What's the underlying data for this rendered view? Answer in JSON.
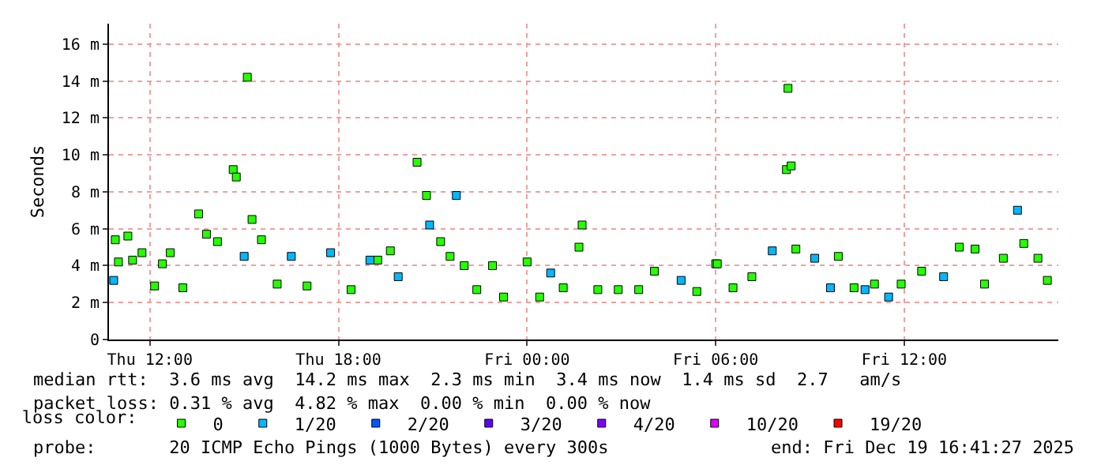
{
  "chart_data": {
    "type": "scatter",
    "ylabel": "Seconds",
    "marker": "square",
    "grid": true,
    "legend": "bottom",
    "legend_title": "loss color:",
    "xlim": [
      "2025-12-18T10:42",
      "2025-12-19T16:54"
    ],
    "xticks": [
      {
        "value": "2025-12-18T12:00",
        "label": "Thu 12:00"
      },
      {
        "value": "2025-12-18T18:00",
        "label": "Thu 18:00"
      },
      {
        "value": "2025-12-19T00:00",
        "label": "Fri 00:00"
      },
      {
        "value": "2025-12-19T06:00",
        "label": "Fri 06:00"
      },
      {
        "value": "2025-12-19T12:00",
        "label": "Fri 12:00"
      }
    ],
    "ylim": [
      0,
      17.1
    ],
    "yticks": [
      0,
      {
        "value": 2,
        "label": "2 m"
      },
      {
        "value": 4,
        "label": "4 m"
      },
      {
        "value": 6,
        "label": "6 m"
      },
      {
        "value": 8,
        "label": "8 m"
      },
      {
        "value": 10,
        "label": "10 m"
      },
      {
        "value": 12,
        "label": "12 m"
      },
      {
        "value": 14,
        "label": "14 m"
      },
      {
        "value": 16,
        "label": "16 m"
      }
    ],
    "series": [
      {
        "name": "0",
        "color": "#26ff00",
        "x": [
          "2025-12-18T10:54",
          "2025-12-18T11:00",
          "2025-12-18T11:18",
          "2025-12-18T11:27",
          "2025-12-18T11:45",
          "2025-12-18T12:09",
          "2025-12-18T12:24",
          "2025-12-18T12:39",
          "2025-12-18T13:03",
          "2025-12-18T13:33",
          "2025-12-18T13:48",
          "2025-12-18T14:09",
          "2025-12-18T14:39",
          "2025-12-18T14:45",
          "2025-12-18T15:06",
          "2025-12-18T15:15",
          "2025-12-18T15:33",
          "2025-12-18T16:03",
          "2025-12-18T17:00",
          "2025-12-18T18:24",
          "2025-12-18T19:15",
          "2025-12-18T19:39",
          "2025-12-18T20:30",
          "2025-12-18T20:48",
          "2025-12-18T21:15",
          "2025-12-18T21:33",
          "2025-12-18T22:00",
          "2025-12-18T22:24",
          "2025-12-18T22:54",
          "2025-12-18T23:15",
          "2025-12-19T00:00",
          "2025-12-19T00:24",
          "2025-12-19T01:09",
          "2025-12-19T01:39",
          "2025-12-19T01:45",
          "2025-12-19T02:15",
          "2025-12-19T02:54",
          "2025-12-19T03:33",
          "2025-12-19T04:03",
          "2025-12-19T05:24",
          "2025-12-19T06:00",
          "2025-12-19T06:03",
          "2025-12-19T06:33",
          "2025-12-19T07:09",
          "2025-12-19T08:15",
          "2025-12-19T08:18",
          "2025-12-19T08:24",
          "2025-12-19T08:33",
          "2025-12-19T09:54",
          "2025-12-19T10:24",
          "2025-12-19T11:03",
          "2025-12-19T11:54",
          "2025-12-19T12:33",
          "2025-12-19T13:45",
          "2025-12-19T14:15",
          "2025-12-19T14:33",
          "2025-12-19T15:09",
          "2025-12-19T15:48",
          "2025-12-19T16:15",
          "2025-12-19T16:33"
        ],
        "values": [
          5.4,
          4.2,
          5.6,
          4.3,
          4.7,
          2.9,
          4.1,
          4.7,
          2.8,
          6.8,
          5.7,
          5.3,
          9.2,
          8.8,
          14.2,
          6.5,
          5.4,
          3.0,
          2.9,
          2.7,
          4.3,
          4.8,
          9.6,
          7.8,
          5.3,
          4.5,
          4.0,
          2.7,
          4.0,
          2.3,
          4.2,
          2.3,
          2.8,
          5.0,
          6.2,
          2.7,
          2.7,
          2.7,
          3.7,
          2.6,
          4.1,
          4.1,
          2.8,
          3.4,
          9.2,
          13.6,
          9.4,
          4.9,
          4.5,
          2.8,
          3.0,
          3.0,
          3.7,
          5.0,
          4.9,
          3.0,
          4.4,
          5.2,
          4.4,
          3.2
        ]
      },
      {
        "name": "1/20",
        "color": "#00b8ff",
        "x": [
          "2025-12-18T10:51",
          "2025-12-18T15:00",
          "2025-12-18T16:30",
          "2025-12-18T17:45",
          "2025-12-18T19:00",
          "2025-12-18T19:54",
          "2025-12-18T20:54",
          "2025-12-18T21:45",
          "2025-12-19T00:45",
          "2025-12-19T04:54",
          "2025-12-19T07:48",
          "2025-12-19T09:09",
          "2025-12-19T09:39",
          "2025-12-19T10:45",
          "2025-12-19T11:30",
          "2025-12-19T13:15",
          "2025-12-19T15:36"
        ],
        "values": [
          3.2,
          4.5,
          4.5,
          4.7,
          4.3,
          3.4,
          6.2,
          7.8,
          3.6,
          3.2,
          4.8,
          4.4,
          2.8,
          2.7,
          2.3,
          3.4,
          7.0
        ]
      },
      {
        "name": "2/20",
        "color": "#0059ff"
      },
      {
        "name": "3/20",
        "color": "#5e00ff"
      },
      {
        "name": "4/20",
        "color": "#7e00ff"
      },
      {
        "name": "10/20",
        "color": "#dd00ff"
      },
      {
        "name": "19/20",
        "color": "#ff0000"
      }
    ],
    "annotations": [
      "median rtt:  3.6 ms avg  14.2 ms max  2.3 ms min  3.4 ms now  1.4 ms sd  2.7   am/s",
      "packet loss: 0.31 % avg  4.82 % max  0.00 % min  0.00 % now",
      "probe:       20 ICMP Echo Pings (1000 Bytes) every 300s",
      "end: Fri Dec 19 16:41:27 2025"
    ]
  }
}
